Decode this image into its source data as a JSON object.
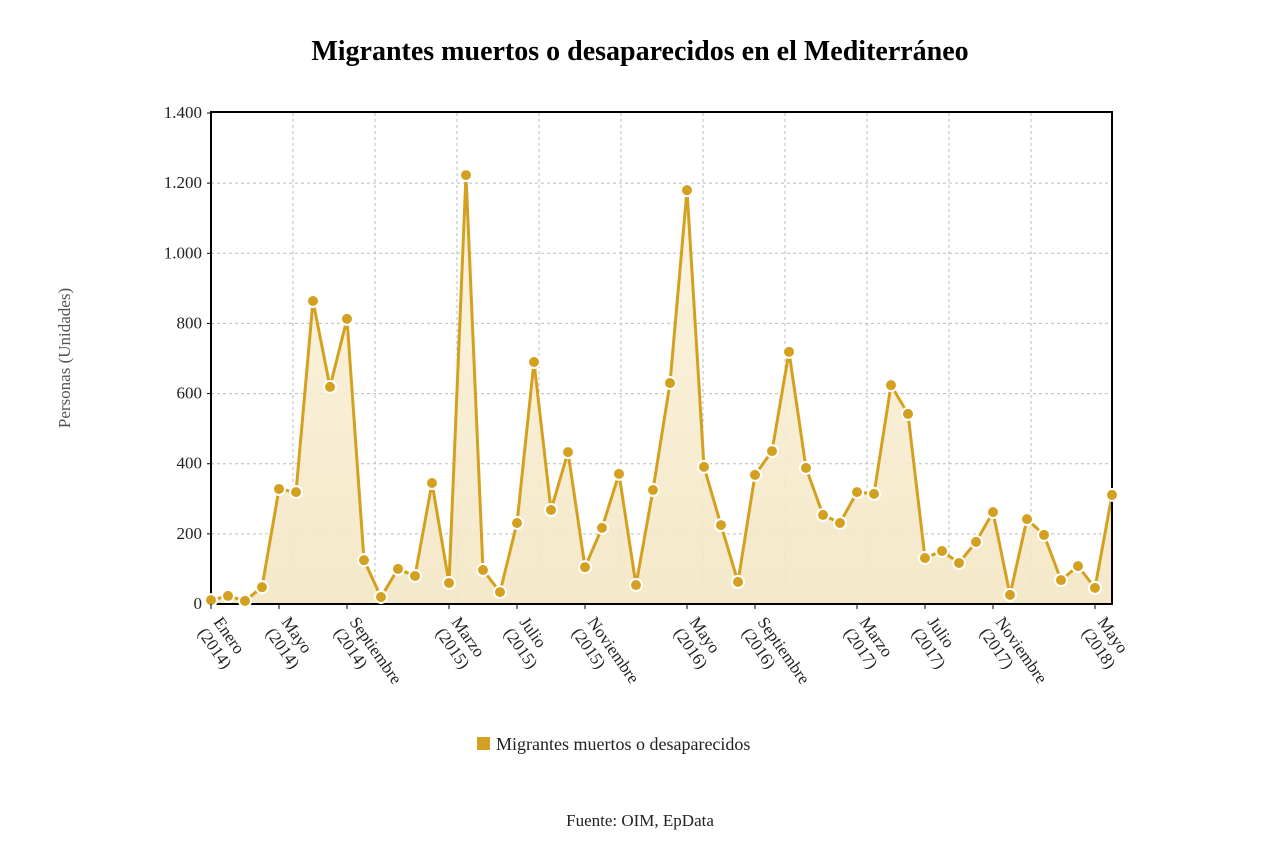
{
  "chart_data": {
    "type": "area",
    "title": "Migrantes muertos o desaparecidos en el Mediterráneo",
    "xlabel": "",
    "ylabel": "Personas (Unidades)",
    "ylim": [
      0,
      1400
    ],
    "yticks": [
      0,
      200,
      400,
      600,
      800,
      1000,
      1200,
      1400
    ],
    "ytick_labels": [
      "0",
      "200",
      "400",
      "600",
      "800",
      "1.000",
      "1.200",
      "1.400"
    ],
    "grid": true,
    "color": "#d4a020",
    "xtick_labels": [
      {
        "index": 0,
        "month": "Enero",
        "year": "(2014)"
      },
      {
        "index": 4,
        "month": "Mayo",
        "year": "(2014)"
      },
      {
        "index": 8,
        "month": "Septiembre",
        "year": "(2014)"
      },
      {
        "index": 14,
        "month": "Marzo",
        "year": "(2015)"
      },
      {
        "index": 18,
        "month": "Julio",
        "year": "(2015)"
      },
      {
        "index": 22,
        "month": "Noviembre",
        "year": "(2015)"
      },
      {
        "index": 28,
        "month": "Mayo",
        "year": "(2016)"
      },
      {
        "index": 32,
        "month": "Septiembre",
        "year": "(2016)"
      },
      {
        "index": 38,
        "month": "Marzo",
        "year": "(2017)"
      },
      {
        "index": 42,
        "month": "Julio",
        "year": "(2017)"
      },
      {
        "index": 46,
        "month": "Noviembre",
        "year": "(2017)"
      },
      {
        "index": 52,
        "month": "Mayo",
        "year": "(2018)"
      }
    ],
    "series": [
      {
        "name": "Migrantes muertos o desaparecidos",
        "values": [
          11,
          23,
          9,
          48,
          328,
          319,
          864,
          619,
          813,
          125,
          20,
          100,
          80,
          345,
          60,
          1223,
          97,
          34,
          231,
          690,
          268,
          433,
          105,
          217,
          371,
          54,
          325,
          630,
          1180,
          391,
          225,
          63,
          368,
          436,
          719,
          388,
          254,
          231,
          319,
          314,
          624,
          542,
          131,
          151,
          117,
          177,
          262,
          26,
          242,
          197,
          68,
          108,
          46,
          311
        ]
      }
    ],
    "legend_position": "bottom",
    "source": "Fuente: OIM, EpData"
  }
}
